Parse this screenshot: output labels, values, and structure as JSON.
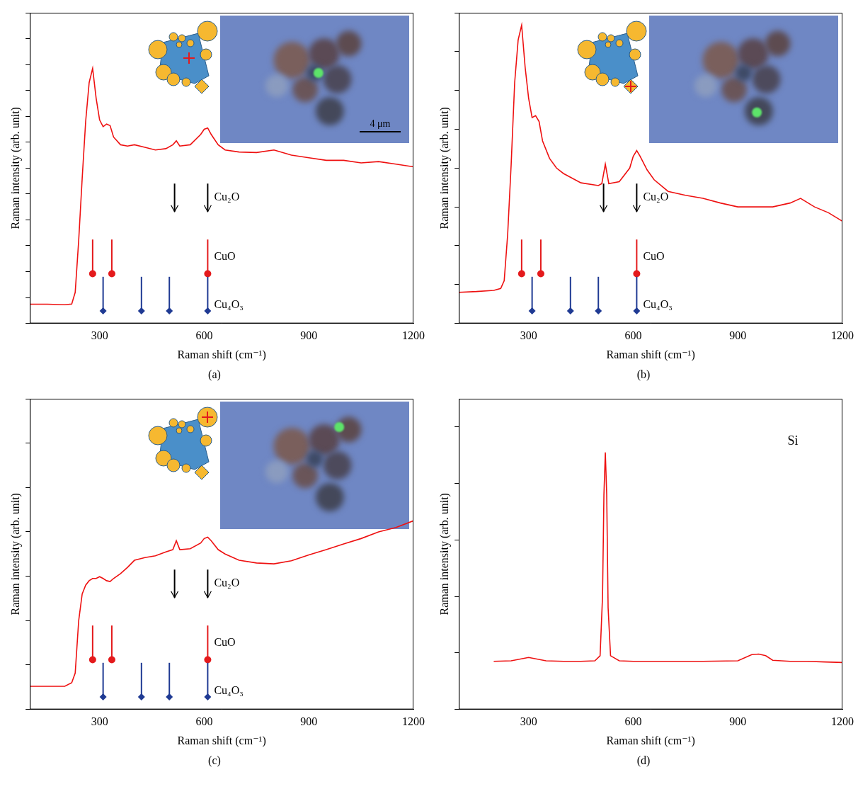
{
  "chart_data": [
    {
      "type": "line",
      "panel_label": "(a)",
      "x_label": "Raman shift (cm⁻¹)",
      "y_label": "Raman intensity (arb. unit)",
      "xlim": [
        100,
        1200
      ],
      "xticks": [
        300,
        600,
        900,
        1200
      ],
      "ylim": [
        0,
        12
      ],
      "yticks": [
        0,
        1,
        2,
        3,
        4,
        5,
        6,
        7,
        8,
        9,
        10,
        11,
        12
      ],
      "tick_labels": "x",
      "grid": false,
      "color": "#ee1111",
      "x": [
        100,
        150,
        200,
        220,
        230,
        240,
        250,
        260,
        270,
        280,
        290,
        300,
        310,
        320,
        330,
        340,
        360,
        380,
        400,
        430,
        460,
        490,
        510,
        520,
        530,
        560,
        590,
        600,
        610,
        620,
        640,
        660,
        700,
        750,
        800,
        850,
        900,
        950,
        1000,
        1050,
        1100,
        1150,
        1200
      ],
      "values": [
        0.74,
        0.74,
        0.72,
        0.75,
        1.2,
        3.2,
        5.6,
        7.8,
        9.3,
        9.85,
        8.7,
        7.86,
        7.6,
        7.7,
        7.64,
        7.2,
        6.9,
        6.85,
        6.9,
        6.8,
        6.7,
        6.75,
        6.9,
        7.05,
        6.85,
        6.9,
        7.3,
        7.5,
        7.55,
        7.3,
        6.9,
        6.7,
        6.62,
        6.6,
        6.7,
        6.5,
        6.4,
        6.3,
        6.3,
        6.2,
        6.25,
        6.15,
        6.05
      ],
      "references": [
        {
          "label": "Cu₂O",
          "marker": "arrow",
          "color": "#000000",
          "positions": [
            515,
            610
          ]
        },
        {
          "label": "CuO",
          "marker": "circle",
          "color": "#e41a1c",
          "positions": [
            280,
            335,
            610
          ]
        },
        {
          "label": "Cu₄O₃",
          "marker": "diamond",
          "color": "#1f3a93",
          "positions": [
            310,
            420,
            500,
            610
          ]
        }
      ],
      "scale_bar": "4 μm"
    },
    {
      "type": "line",
      "panel_label": "(b)",
      "x_label": "Raman shift (cm⁻¹)",
      "y_label": "Raman intensity (arb. unit)",
      "xlim": [
        100,
        1200
      ],
      "xticks": [
        300,
        600,
        900,
        1200
      ],
      "ylim": [
        0,
        8
      ],
      "yticks": [
        0,
        1,
        2,
        3,
        4,
        5,
        6,
        7,
        8
      ],
      "tick_labels": "x",
      "grid": false,
      "color": "#ee1111",
      "x": [
        100,
        150,
        200,
        220,
        230,
        240,
        250,
        260,
        270,
        280,
        290,
        300,
        310,
        320,
        330,
        340,
        360,
        380,
        400,
        450,
        500,
        510,
        520,
        530,
        560,
        590,
        600,
        610,
        620,
        640,
        660,
        700,
        750,
        800,
        850,
        900,
        950,
        1000,
        1050,
        1080,
        1120,
        1160,
        1200
      ],
      "values": [
        0.8,
        0.82,
        0.85,
        0.9,
        1.1,
        2.3,
        4.1,
        6.2,
        7.3,
        7.68,
        6.6,
        5.8,
        5.3,
        5.35,
        5.2,
        4.7,
        4.25,
        4.0,
        3.86,
        3.62,
        3.55,
        3.6,
        4.1,
        3.6,
        3.65,
        4.0,
        4.3,
        4.45,
        4.3,
        3.95,
        3.7,
        3.4,
        3.3,
        3.22,
        3.1,
        3.0,
        3.0,
        3.0,
        3.1,
        3.22,
        3.0,
        2.85,
        2.63
      ],
      "references": [
        {
          "label": "Cu₂O",
          "marker": "arrow",
          "color": "#000000",
          "positions": [
            515,
            610
          ]
        },
        {
          "label": "CuO",
          "marker": "circle",
          "color": "#e41a1c",
          "positions": [
            280,
            335,
            610
          ]
        },
        {
          "label": "Cu₄O₃",
          "marker": "diamond",
          "color": "#1f3a93",
          "positions": [
            310,
            420,
            500,
            610
          ]
        }
      ]
    },
    {
      "type": "line",
      "panel_label": "(c)",
      "x_label": "Raman shift (cm⁻¹)",
      "y_label": "Raman intensity (arb. unit)",
      "xlim": [
        100,
        1200
      ],
      "xticks": [
        300,
        600,
        900,
        1200
      ],
      "ylim": [
        0,
        7
      ],
      "yticks": [
        0,
        1,
        2,
        3,
        4,
        5,
        6,
        7
      ],
      "tick_labels": "x",
      "grid": false,
      "color": "#ee1111",
      "x": [
        100,
        150,
        200,
        220,
        230,
        240,
        250,
        260,
        270,
        280,
        290,
        300,
        310,
        320,
        330,
        340,
        360,
        380,
        400,
        430,
        460,
        490,
        510,
        520,
        530,
        560,
        590,
        600,
        610,
        620,
        640,
        660,
        700,
        750,
        800,
        850,
        900,
        950,
        1000,
        1050,
        1100,
        1150,
        1200
      ],
      "values": [
        0.52,
        0.52,
        0.52,
        0.6,
        0.82,
        2.0,
        2.6,
        2.8,
        2.9,
        2.95,
        2.95,
        2.99,
        2.95,
        2.9,
        2.88,
        2.95,
        3.06,
        3.2,
        3.36,
        3.42,
        3.46,
        3.55,
        3.6,
        3.8,
        3.6,
        3.62,
        3.75,
        3.85,
        3.88,
        3.8,
        3.6,
        3.5,
        3.36,
        3.3,
        3.28,
        3.35,
        3.48,
        3.6,
        3.73,
        3.85,
        4.0,
        4.1,
        4.25
      ],
      "references": [
        {
          "label": "Cu₂O",
          "marker": "arrow",
          "color": "#000000",
          "positions": [
            515,
            610
          ]
        },
        {
          "label": "CuO",
          "marker": "circle",
          "color": "#e41a1c",
          "positions": [
            280,
            335,
            610
          ]
        },
        {
          "label": "Cu₄O₃",
          "marker": "diamond",
          "color": "#1f3a93",
          "positions": [
            310,
            420,
            500,
            610
          ]
        }
      ]
    },
    {
      "type": "line",
      "panel_label": "(d)",
      "x_label": "Raman shift (cm⁻¹)",
      "y_label": "Raman intensity (arb. unit)",
      "xlim": [
        100,
        1200
      ],
      "xticks": [
        300,
        600,
        900,
        1200
      ],
      "ylim": [
        0,
        5.5
      ],
      "yticks": [
        0,
        1,
        2,
        3,
        4,
        5
      ],
      "tick_labels": "x",
      "grid": false,
      "color": "#ee1111",
      "x": [
        200,
        250,
        300,
        350,
        400,
        450,
        490,
        505,
        512,
        516,
        520,
        524,
        528,
        535,
        560,
        600,
        700,
        800,
        900,
        940,
        960,
        980,
        1000,
        1050,
        1100,
        1150,
        1200
      ],
      "values": [
        0.85,
        0.86,
        0.92,
        0.86,
        0.85,
        0.85,
        0.86,
        0.95,
        2.0,
        3.8,
        4.55,
        3.8,
        1.8,
        0.95,
        0.86,
        0.85,
        0.85,
        0.85,
        0.86,
        0.97,
        0.98,
        0.95,
        0.87,
        0.85,
        0.85,
        0.84,
        0.83
      ],
      "annotations": [
        "Si"
      ]
    }
  ]
}
